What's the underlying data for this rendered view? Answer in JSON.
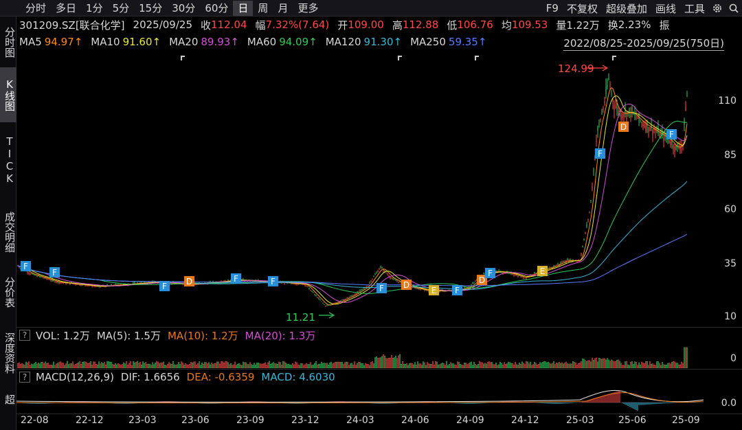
{
  "toolbar": {
    "periods": [
      "分时",
      "多日",
      "1分",
      "5分",
      "15分",
      "30分",
      "60分",
      "日",
      "周",
      "月",
      "更多"
    ],
    "active_period": "日",
    "right_items": [
      "F9",
      "不复权",
      "超级叠加",
      "画线",
      "工具"
    ]
  },
  "leftnav": {
    "tabs": [
      "分时图",
      "K线图",
      "TICK",
      "成交明细",
      "分价表",
      "深度资料",
      "超"
    ],
    "active": "K线图"
  },
  "quote": {
    "code": "301209.SZ[联合化学]",
    "date": "2025/09/25",
    "close_label": "收",
    "close": "112.04",
    "change_label": "幅",
    "change": "7.32%(7.64)",
    "open_label": "开",
    "open": "109.00",
    "high_label": "高",
    "high": "112.88",
    "low_label": "低",
    "low": "106.76",
    "avg_label": "均",
    "avg": "109.53",
    "vol_label": "量",
    "vol": "1.22万",
    "turnover_label": "换",
    "turnover": "2.23%",
    "amp_label": "振"
  },
  "ma_row": {
    "items": [
      {
        "label": "MA5",
        "value": "94.97↑",
        "color": "#ff8c1a"
      },
      {
        "label": "MA10",
        "value": "91.60↑",
        "color": "#e8e83a"
      },
      {
        "label": "MA20",
        "value": "89.93↑",
        "color": "#d650d6"
      },
      {
        "label": "MA60",
        "value": "94.09↑",
        "color": "#2ecc5b"
      },
      {
        "label": "MA120",
        "value": "91.30↑",
        "color": "#3ab8d8"
      },
      {
        "label": "MA250",
        "value": "59.35↑",
        "color": "#5a7cff"
      }
    ],
    "range": "2022/08/25-2025/09/25(750日)"
  },
  "price_axis": [
    "110",
    "85",
    "60",
    "35",
    "10"
  ],
  "annotations": {
    "high": "124.99",
    "low": "11.21"
  },
  "vol_panel": {
    "label": "VOL: 1.2万",
    "ma5": "MA(5): 1.5万",
    "ma10": "MA(10): 1.2万",
    "ma20": "MA(20): 1.3万",
    "axis": "0"
  },
  "macd_panel": {
    "label": "MACD(12,26,9)",
    "dif": "DIF: 1.6656",
    "dea": "DEA: -0.6359",
    "macd": "MACD: 4.6030",
    "axis": "0.0"
  },
  "date_axis": [
    "22-08",
    "22-12",
    "23-03",
    "23-06",
    "23-09",
    "23-12",
    "24-03",
    "24-06",
    "24-09",
    "24-12",
    "25-03",
    "25-06",
    "25-09"
  ],
  "markers": [
    {
      "t": "F",
      "color": "#2a8fd6"
    },
    {
      "t": "F",
      "color": "#2a8fd6"
    },
    {
      "t": "F",
      "color": "#2a8fd6"
    },
    {
      "t": "D",
      "color": "#e87a1a"
    },
    {
      "t": "F",
      "color": "#2a8fd6"
    },
    {
      "t": "F",
      "color": "#2a8fd6"
    },
    {
      "t": "F",
      "color": "#2a8fd6"
    },
    {
      "t": "D",
      "color": "#e87a1a"
    },
    {
      "t": "E",
      "color": "#d8b030"
    },
    {
      "t": "F",
      "color": "#2a8fd6"
    },
    {
      "t": "D",
      "color": "#e87a1a"
    },
    {
      "t": "F",
      "color": "#2a8fd6"
    },
    {
      "t": "E",
      "color": "#d8b030"
    },
    {
      "t": "F",
      "color": "#2a8fd6"
    },
    {
      "t": "D",
      "color": "#e87a1a"
    },
    {
      "t": "F",
      "color": "#2a8fd6"
    }
  ],
  "colors": {
    "up": "#ff4a4a",
    "down": "#2ecc5b",
    "bg": "#000000"
  }
}
